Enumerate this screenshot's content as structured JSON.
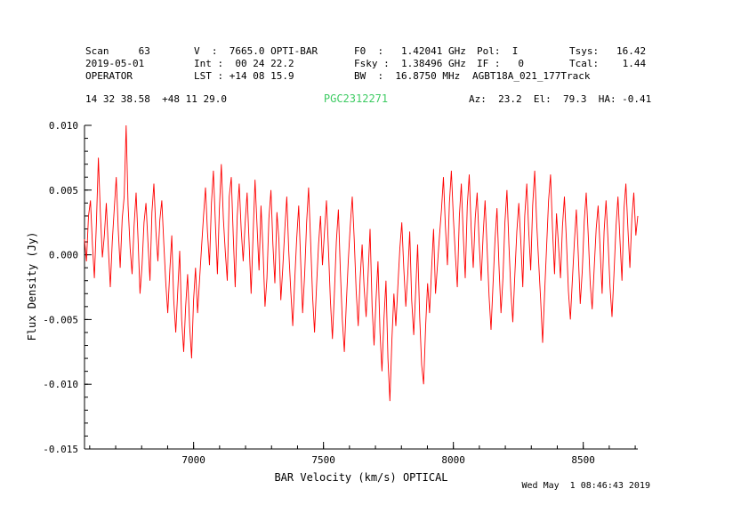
{
  "colors": {
    "spectrum_red": "#ff0000",
    "source_green": "#3ecb63",
    "axis_black": "#000000",
    "background": "#ffffff"
  },
  "header": {
    "scan": "Scan     63",
    "date": "2019-05-01",
    "operator": "OPERATOR",
    "v": "V  :  7665.0 OPTI-BAR",
    "int": "Int :  00 24 22.2",
    "lst": "LST : +14 08 15.9",
    "f0": "F0  :   1.42041 GHz",
    "fsky": "Fsky :  1.38496 GHz",
    "bw": "BW  :  16.8750 MHz",
    "pol": "Pol:  I",
    "if": "IF :   0",
    "project": "AGBT18A_021_177Track",
    "tsys": "Tsys:   16.42",
    "tcal": "Tcal:    1.44"
  },
  "source_line": {
    "coords": "14 32 38.58  +48 11 29.0",
    "azelha": "Az:  23.2  El:  79.3  HA: -0.41"
  },
  "footer": {
    "timestamp": "Wed May  1 08:46:43 2019"
  },
  "chart_data": {
    "type": "line",
    "title": "PGC2312271",
    "xlabel": "BAR Velocity (km/s) OPTICAL",
    "ylabel": "Flux Density (Jy)",
    "xlim": [
      6580,
      8710
    ],
    "ylim": [
      -0.015,
      0.01
    ],
    "x_ticks": [
      7000,
      7500,
      8000,
      8500
    ],
    "x_tick_labels": [
      "7000",
      "7500",
      "8000",
      "8500"
    ],
    "y_ticks": [
      0.01,
      0.005,
      0.0,
      -0.005,
      -0.01,
      -0.015
    ],
    "y_tick_labels": [
      "0.010",
      "0.005",
      "0.000",
      "-0.005",
      "-0.010",
      "-0.015"
    ],
    "x_minor_step": 100,
    "y_minor_step": 0.001,
    "grid": false,
    "legend": "none",
    "line_color": "#ff0000",
    "axis_color": "#000000",
    "series": [
      {
        "name": "spectrum",
        "x_start": 6580,
        "x_end": 8710,
        "unit": "Jy",
        "scale": 0.0001,
        "values": [
          12,
          -5,
          30,
          42,
          8,
          -18,
          25,
          75,
          33,
          -2,
          15,
          40,
          5,
          -25,
          10,
          35,
          60,
          20,
          -10,
          28,
          45,
          100,
          38,
          5,
          -15,
          22,
          48,
          12,
          -30,
          -8,
          25,
          40,
          10,
          -20,
          33,
          55,
          18,
          -5,
          27,
          42,
          8,
          -22,
          -45,
          -12,
          15,
          -35,
          -60,
          -28,
          3,
          -50,
          -75,
          -40,
          -15,
          -55,
          -80,
          -35,
          -10,
          -45,
          -20,
          5,
          30,
          52,
          18,
          -8,
          40,
          65,
          25,
          -15,
          35,
          70,
          28,
          2,
          -20,
          45,
          60,
          15,
          -25,
          30,
          55,
          20,
          -5,
          25,
          48,
          10,
          -30,
          15,
          58,
          22,
          -12,
          38,
          5,
          -40,
          -18,
          28,
          50,
          8,
          -22,
          33,
          12,
          -35,
          -10,
          20,
          45,
          3,
          -28,
          -55,
          -20,
          12,
          38,
          -5,
          -45,
          -15,
          25,
          52,
          10,
          -32,
          -60,
          -25,
          8,
          30,
          -8,
          18,
          42,
          5,
          -35,
          -65,
          -30,
          10,
          35,
          -12,
          -50,
          -75,
          -38,
          -5,
          22,
          45,
          12,
          -28,
          -55,
          -18,
          8,
          -25,
          -48,
          -15,
          20,
          -40,
          -70,
          -35,
          -5,
          -60,
          -90,
          -50,
          -20,
          -80,
          -113,
          -65,
          -30,
          -55,
          -25,
          5,
          25,
          -10,
          -40,
          -15,
          18,
          -35,
          -62,
          -28,
          8,
          -48,
          -85,
          -100,
          -55,
          -22,
          -45,
          -12,
          20,
          -30,
          -8,
          15,
          35,
          60,
          22,
          -8,
          40,
          65,
          28,
          0,
          -25,
          30,
          55,
          15,
          -18,
          38,
          62,
          20,
          -10,
          28,
          48,
          10,
          -20,
          15,
          42,
          5,
          -32,
          -58,
          -22,
          12,
          36,
          -8,
          -45,
          -18,
          25,
          50,
          8,
          -28,
          -52,
          -15,
          18,
          40,
          10,
          -25,
          30,
          55,
          18,
          -12,
          38,
          65,
          25,
          -5,
          -35,
          -68,
          -30,
          5,
          42,
          62,
          20,
          -15,
          32,
          8,
          -18,
          22,
          45,
          12,
          -28,
          -50,
          -20,
          10,
          35,
          0,
          -38,
          -12,
          26,
          48,
          15,
          -22,
          -42,
          -10,
          20,
          38,
          5,
          -30,
          18,
          42,
          10,
          -25,
          -48,
          -15,
          22,
          45,
          12,
          -20,
          35,
          55,
          20,
          -10,
          28,
          48,
          15,
          30
        ]
      }
    ]
  }
}
